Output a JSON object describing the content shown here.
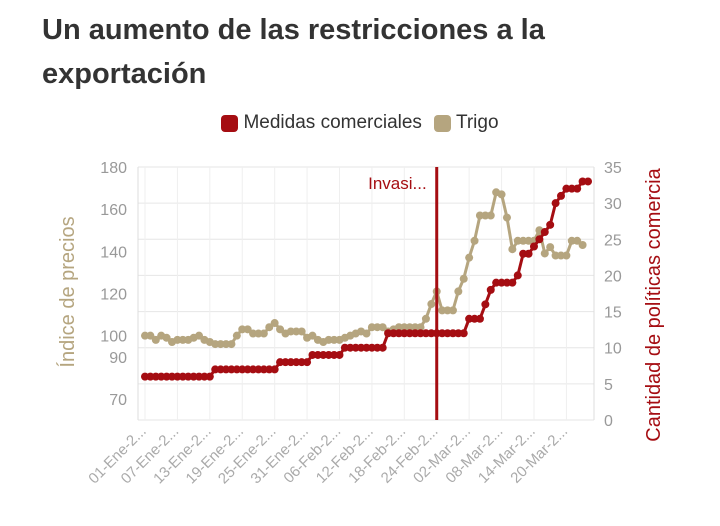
{
  "title": "Un aumento de las restricciones a la exportación",
  "chart_data": {
    "type": "line",
    "title": "Un aumento de las restricciones a la exportación",
    "ylabel_left": "Índice de precios",
    "ylabel_right": "Cantidad de políticas comercia",
    "yticks_left": [
      70,
      90,
      100,
      120,
      140,
      160,
      180
    ],
    "yticks_right": [
      0,
      5,
      10,
      15,
      20,
      25,
      30,
      35
    ],
    "ylim_left": [
      60,
      180
    ],
    "ylim_right": [
      0,
      35
    ],
    "x_tick_labels": [
      "01-Ene-2...",
      "07-Ene-2...",
      "13-Ene-2...",
      "19-Ene-2...",
      "25-Ene-2...",
      "31-Ene-2...",
      "06-Feb-2...",
      "12-Feb-2...",
      "18-Feb-2...",
      "24-Feb-2...",
      "02-Mar-2...",
      "08-Mar-2...",
      "14-Mar-2...",
      "20-Mar-2..."
    ],
    "x_tick_index": [
      0,
      6,
      12,
      18,
      24,
      30,
      36,
      42,
      48,
      54,
      60,
      66,
      72,
      78
    ],
    "annotation": {
      "label": "Invasi...",
      "x_index": 54
    },
    "grid": true,
    "legend_position": "top-center",
    "series": [
      {
        "name": "Medidas comerciales",
        "color": "#a50d12",
        "axis": "right",
        "values": [
          6,
          6,
          6,
          6,
          6,
          6,
          6,
          6,
          6,
          6,
          6,
          6,
          6,
          7,
          7,
          7,
          7,
          7,
          7,
          7,
          7,
          7,
          7,
          7,
          7,
          8,
          8,
          8,
          8,
          8,
          8,
          9,
          9,
          9,
          9,
          9,
          9,
          10,
          10,
          10,
          10,
          10,
          10,
          10,
          10,
          12,
          12,
          12,
          12,
          12,
          12,
          12,
          12,
          12,
          12,
          12,
          12,
          12,
          12,
          12,
          14,
          14,
          14,
          16,
          18,
          19,
          19,
          19,
          19,
          20,
          23,
          23,
          24,
          25,
          26,
          27,
          30,
          31,
          32,
          32,
          32,
          33,
          33
        ]
      },
      {
        "name": "Trigo",
        "color": "#b5a57f",
        "axis": "left",
        "values": [
          100,
          100,
          98,
          100,
          99,
          97,
          98,
          98,
          98,
          99,
          100,
          98,
          97,
          96,
          96,
          96,
          96,
          100,
          103,
          103,
          101,
          101,
          101,
          104,
          106,
          103,
          101,
          102,
          102,
          102,
          99,
          100,
          98,
          97,
          98,
          98,
          98,
          99,
          100,
          101,
          102,
          101,
          104,
          104,
          104,
          102,
          103,
          104,
          104,
          104,
          104,
          104,
          108,
          115,
          121,
          112,
          112,
          112,
          121,
          127,
          137,
          145,
          157,
          157,
          157,
          168,
          167,
          156,
          141,
          145,
          145,
          145,
          145,
          150,
          139,
          142,
          138,
          138,
          138,
          145,
          145,
          143
        ]
      }
    ]
  }
}
